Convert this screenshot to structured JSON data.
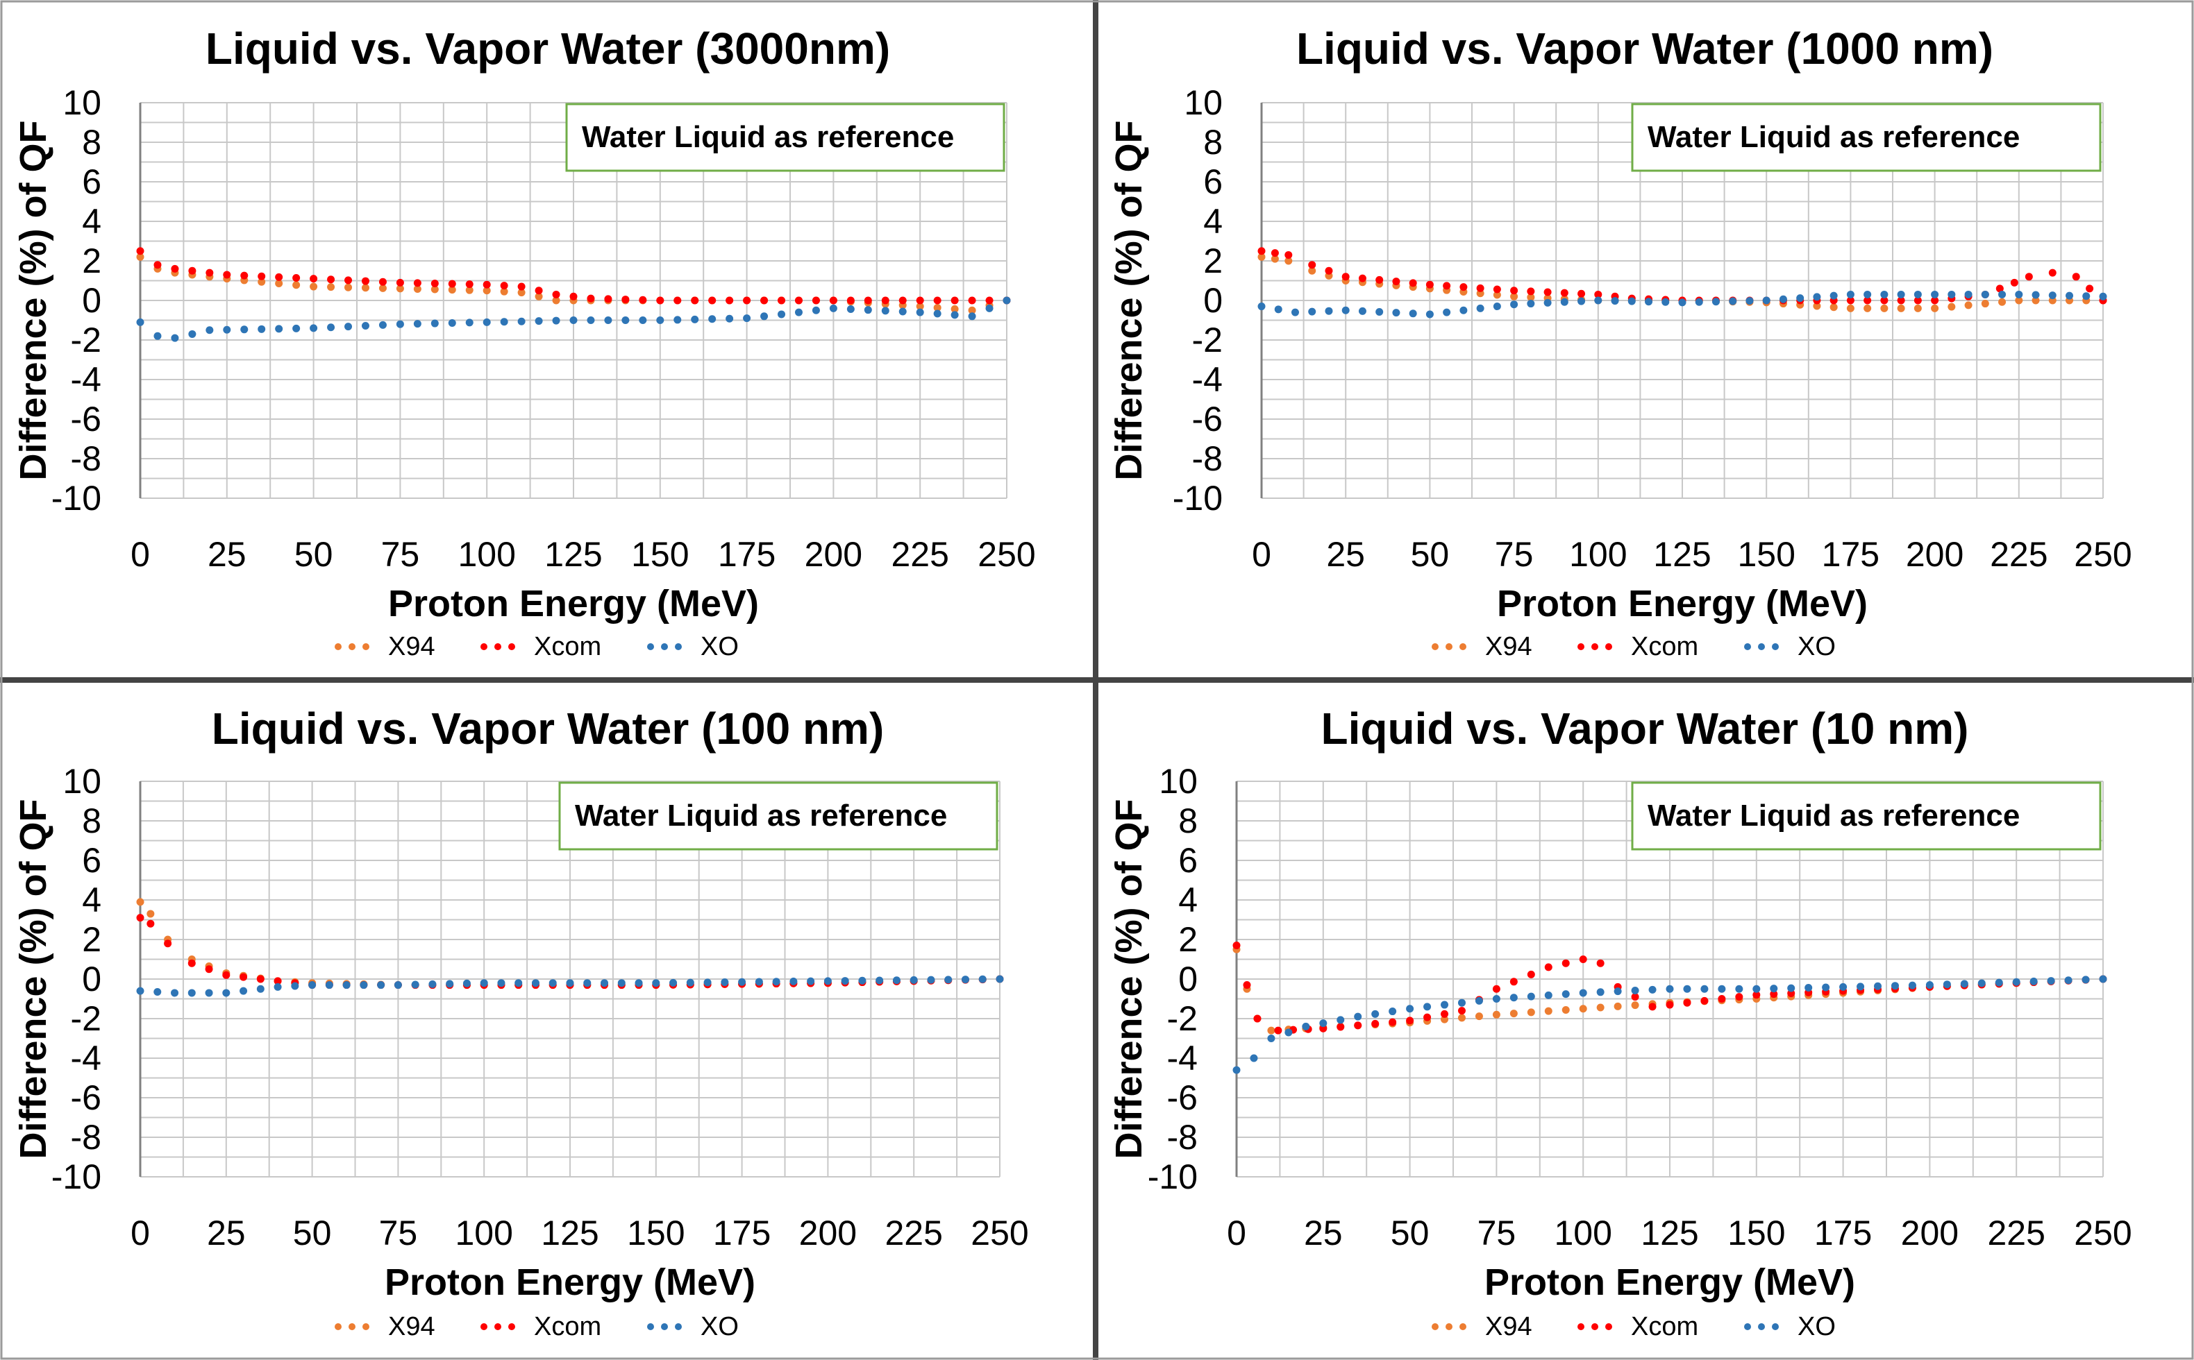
{
  "series_styles": [
    {
      "name": "X94",
      "color": "#ED7D31"
    },
    {
      "name": "Xcom",
      "color": "#FF0000"
    },
    {
      "name": "XO",
      "color": "#2E75B6"
    }
  ],
  "chart_data": [
    {
      "type": "scatter",
      "title": "Liquid vs. Vapor Water (3000nm)",
      "xlabel": "Proton Energy (MeV)",
      "ylabel": "Difference (%) of QF",
      "xlim": [
        0,
        250
      ],
      "ylim": [
        -10,
        10
      ],
      "xticks": [
        "0",
        "25",
        "50",
        "75",
        "100",
        "125",
        "150",
        "175",
        "200",
        "225",
        "250"
      ],
      "yticks": [
        "10",
        "8",
        "6",
        "4",
        "2",
        "0",
        "-2",
        "-4",
        "-6",
        "-8",
        "-10"
      ],
      "annotation": "Water Liquid as reference",
      "legend": [
        "X94",
        "Xcom",
        "XO"
      ],
      "series": [
        {
          "name": "X94",
          "points": [
            [
              0,
              2.2
            ],
            [
              5,
              1.6
            ],
            [
              10,
              1.4
            ],
            [
              25,
              1.1
            ],
            [
              50,
              0.7
            ],
            [
              75,
              0.6
            ],
            [
              100,
              0.5
            ],
            [
              110,
              0.4
            ],
            [
              120,
              0.0
            ],
            [
              150,
              0.0
            ],
            [
              200,
              0.0
            ],
            [
              225,
              -0.3
            ],
            [
              240,
              -0.5
            ],
            [
              250,
              0.0
            ]
          ]
        },
        {
          "name": "Xcom",
          "points": [
            [
              0,
              2.5
            ],
            [
              5,
              1.8
            ],
            [
              10,
              1.6
            ],
            [
              25,
              1.3
            ],
            [
              50,
              1.1
            ],
            [
              75,
              0.9
            ],
            [
              100,
              0.8
            ],
            [
              110,
              0.7
            ],
            [
              120,
              0.3
            ],
            [
              130,
              0.1
            ],
            [
              150,
              0.0
            ],
            [
              200,
              0.0
            ],
            [
              240,
              0.0
            ],
            [
              250,
              0.0
            ]
          ]
        },
        {
          "name": "XO",
          "points": [
            [
              0,
              -1.1
            ],
            [
              5,
              -1.8
            ],
            [
              10,
              -1.9
            ],
            [
              20,
              -1.5
            ],
            [
              50,
              -1.4
            ],
            [
              75,
              -1.2
            ],
            [
              100,
              -1.1
            ],
            [
              125,
              -1.0
            ],
            [
              150,
              -1.0
            ],
            [
              175,
              -0.9
            ],
            [
              200,
              -0.4
            ],
            [
              225,
              -0.6
            ],
            [
              240,
              -0.8
            ],
            [
              250,
              0.0
            ]
          ]
        }
      ]
    },
    {
      "type": "scatter",
      "title": "Liquid vs. Vapor Water  (1000 nm)",
      "xlabel": "Proton Energy (MeV)",
      "ylabel": "Difference (%) of QF",
      "xlim": [
        0,
        250
      ],
      "ylim": [
        -10,
        10
      ],
      "xticks": [
        "0",
        "25",
        "50",
        "75",
        "100",
        "125",
        "150",
        "175",
        "200",
        "225",
        "250"
      ],
      "yticks": [
        "10",
        "8",
        "6",
        "4",
        "2",
        "0",
        "-2",
        "-4",
        "-6",
        "-8",
        "-10"
      ],
      "annotation": "Water Liquid as reference",
      "legend": [
        "X94",
        "Xcom",
        "XO"
      ],
      "series": [
        {
          "name": "X94",
          "points": [
            [
              0,
              2.2
            ],
            [
              8,
              2.0
            ],
            [
              15,
              1.5
            ],
            [
              25,
              1.0
            ],
            [
              50,
              0.6
            ],
            [
              75,
              0.2
            ],
            [
              100,
              0.0
            ],
            [
              125,
              0.0
            ],
            [
              150,
              -0.1
            ],
            [
              175,
              -0.4
            ],
            [
              200,
              -0.4
            ],
            [
              225,
              0.0
            ],
            [
              250,
              0.0
            ]
          ]
        },
        {
          "name": "Xcom",
          "points": [
            [
              0,
              2.5
            ],
            [
              8,
              2.3
            ],
            [
              15,
              1.8
            ],
            [
              25,
              1.2
            ],
            [
              50,
              0.8
            ],
            [
              75,
              0.5
            ],
            [
              100,
              0.3
            ],
            [
              110,
              0.1
            ],
            [
              125,
              0.0
            ],
            [
              150,
              0.0
            ],
            [
              175,
              0.0
            ],
            [
              200,
              0.0
            ],
            [
              215,
              0.3
            ],
            [
              228,
              1.2
            ],
            [
              235,
              1.4
            ],
            [
              242,
              1.2
            ],
            [
              250,
              0.0
            ]
          ]
        },
        {
          "name": "XO",
          "points": [
            [
              0,
              -0.3
            ],
            [
              10,
              -0.6
            ],
            [
              25,
              -0.5
            ],
            [
              50,
              -0.7
            ],
            [
              75,
              -0.2
            ],
            [
              100,
              0.0
            ],
            [
              125,
              -0.1
            ],
            [
              150,
              0.0
            ],
            [
              175,
              0.3
            ],
            [
              200,
              0.3
            ],
            [
              225,
              0.3
            ],
            [
              250,
              0.2
            ]
          ]
        }
      ]
    },
    {
      "type": "scatter",
      "title": "Liquid vs. Vapor Water  (100 nm)",
      "xlabel": "Proton Energy (MeV)",
      "ylabel": "Difference (%) of QF",
      "xlim": [
        0,
        250
      ],
      "ylim": [
        -10,
        10
      ],
      "xticks": [
        "0",
        "25",
        "50",
        "75",
        "100",
        "125",
        "150",
        "175",
        "200",
        "225",
        "250"
      ],
      "yticks": [
        "10",
        "8",
        "6",
        "4",
        "2",
        "0",
        "-2",
        "-4",
        "-6",
        "-8",
        "-10"
      ],
      "annotation": "Water Liquid as reference",
      "legend": [
        "X94",
        "Xcom",
        "XO"
      ],
      "series": [
        {
          "name": "X94",
          "points": [
            [
              0,
              3.9
            ],
            [
              3,
              3.3
            ],
            [
              8,
              2.0
            ],
            [
              15,
              1.0
            ],
            [
              25,
              0.3
            ],
            [
              40,
              -0.1
            ],
            [
              50,
              -0.2
            ],
            [
              75,
              -0.3
            ],
            [
              100,
              -0.3
            ],
            [
              150,
              -0.3
            ],
            [
              200,
              -0.2
            ],
            [
              250,
              0.0
            ]
          ]
        },
        {
          "name": "Xcom",
          "points": [
            [
              0,
              3.1
            ],
            [
              3,
              2.8
            ],
            [
              8,
              1.8
            ],
            [
              15,
              0.8
            ],
            [
              25,
              0.2
            ],
            [
              40,
              -0.1
            ],
            [
              50,
              -0.3
            ],
            [
              75,
              -0.3
            ],
            [
              100,
              -0.3
            ],
            [
              150,
              -0.3
            ],
            [
              200,
              -0.2
            ],
            [
              250,
              0.0
            ]
          ]
        },
        {
          "name": "XO",
          "points": [
            [
              0,
              -0.6
            ],
            [
              10,
              -0.7
            ],
            [
              25,
              -0.7
            ],
            [
              40,
              -0.4
            ],
            [
              50,
              -0.3
            ],
            [
              75,
              -0.3
            ],
            [
              100,
              -0.2
            ],
            [
              150,
              -0.2
            ],
            [
              200,
              -0.1
            ],
            [
              250,
              0.0
            ]
          ]
        }
      ]
    },
    {
      "type": "scatter",
      "title": "Liquid vs. Vapor Water  (10 nm)",
      "xlabel": "Proton Energy (MeV)",
      "ylabel": "Difference (%) of QF",
      "xlim": [
        0,
        250
      ],
      "ylim": [
        -10,
        10
      ],
      "xticks": [
        "0",
        "25",
        "50",
        "75",
        "100",
        "125",
        "150",
        "175",
        "200",
        "225",
        "250"
      ],
      "yticks": [
        "10",
        "8",
        "6",
        "4",
        "2",
        "0",
        "-2",
        "-4",
        "-6",
        "-8",
        "-10"
      ],
      "annotation": "Water Liquid as reference",
      "legend": [
        "X94",
        "Xcom",
        "XO"
      ],
      "series": [
        {
          "name": "X94",
          "points": [
            [
              0,
              1.5
            ],
            [
              3,
              -0.5
            ],
            [
              6,
              -2.0
            ],
            [
              10,
              -2.6
            ],
            [
              20,
              -2.5
            ],
            [
              30,
              -2.4
            ],
            [
              50,
              -2.2
            ],
            [
              75,
              -1.8
            ],
            [
              100,
              -1.5
            ],
            [
              125,
              -1.2
            ],
            [
              150,
              -1.0
            ],
            [
              175,
              -0.7
            ],
            [
              200,
              -0.4
            ],
            [
              225,
              -0.2
            ],
            [
              250,
              0.0
            ]
          ]
        },
        {
          "name": "Xcom",
          "points": [
            [
              0,
              1.7
            ],
            [
              3,
              -0.3
            ],
            [
              6,
              -2.0
            ],
            [
              12,
              -2.6
            ],
            [
              25,
              -2.5
            ],
            [
              50,
              -2.1
            ],
            [
              65,
              -1.6
            ],
            [
              75,
              -0.5
            ],
            [
              90,
              0.6
            ],
            [
              100,
              1.0
            ],
            [
              105,
              0.8
            ],
            [
              110,
              -0.4
            ],
            [
              120,
              -1.4
            ],
            [
              150,
              -0.8
            ],
            [
              200,
              -0.4
            ],
            [
              250,
              0.0
            ]
          ]
        },
        {
          "name": "XO",
          "points": [
            [
              0,
              -4.6
            ],
            [
              5,
              -4.0
            ],
            [
              10,
              -3.0
            ],
            [
              20,
              -2.4
            ],
            [
              35,
              -1.9
            ],
            [
              50,
              -1.5
            ],
            [
              65,
              -1.2
            ],
            [
              75,
              -1.0
            ],
            [
              100,
              -0.7
            ],
            [
              125,
              -0.5
            ],
            [
              150,
              -0.5
            ],
            [
              175,
              -0.4
            ],
            [
              200,
              -0.3
            ],
            [
              250,
              0.0
            ]
          ]
        }
      ]
    }
  ]
}
